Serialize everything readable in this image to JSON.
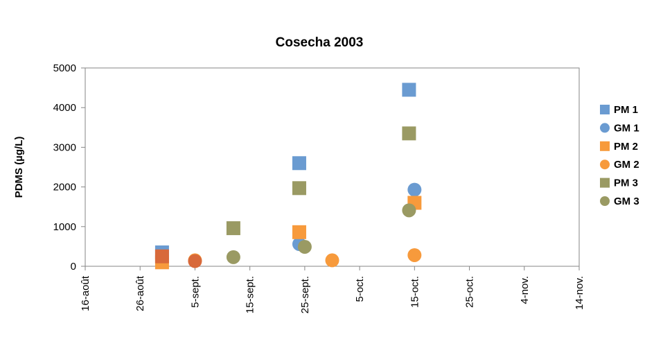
{
  "chart_data": {
    "type": "scatter",
    "title": "Cosecha 2003",
    "xlabel": "",
    "ylabel": "PDMS (µg/L)",
    "x_ticks": [
      "16-août",
      "26-août",
      "5-sept.",
      "15-sept.",
      "25-sept.",
      "5-oct.",
      "15-oct.",
      "25-oct.",
      "4-nov.",
      "14-nov."
    ],
    "x_range": [
      "2003-08-16",
      "2003-11-14"
    ],
    "ylim": [
      0,
      5000
    ],
    "y_ticks": [
      "0",
      "1000",
      "2000",
      "3000",
      "4000",
      "5000"
    ],
    "legend_position": "right",
    "grid": false,
    "series": [
      {
        "name": "PM 1",
        "marker": "square",
        "color": "#6a9bd1",
        "points": [
          {
            "x": "2003-08-30",
            "y": 350
          },
          {
            "x": "2003-09-24",
            "y": 2600
          },
          {
            "x": "2003-10-14",
            "y": 4450
          }
        ]
      },
      {
        "name": "GM 1",
        "marker": "circle",
        "color": "#6a9bd1",
        "points": [
          {
            "x": "2003-09-24",
            "y": 560
          },
          {
            "x": "2003-10-15",
            "y": 1930
          }
        ]
      },
      {
        "name": "PM 2",
        "marker": "square",
        "color": "#f79a3c",
        "points": [
          {
            "x": "2003-08-30",
            "y": 100
          },
          {
            "x": "2003-09-24",
            "y": 860
          },
          {
            "x": "2003-10-15",
            "y": 1600
          }
        ]
      },
      {
        "name": "GM 2",
        "marker": "circle",
        "color": "#f79a3c",
        "points": [
          {
            "x": "2003-09-05",
            "y": 150
          },
          {
            "x": "2003-09-30",
            "y": 150
          },
          {
            "x": "2003-10-15",
            "y": 280
          }
        ]
      },
      {
        "name": "PM 3",
        "marker": "square",
        "color": "#9a9a63",
        "points": [
          {
            "x": "2003-09-12",
            "y": 960
          },
          {
            "x": "2003-09-24",
            "y": 1970
          },
          {
            "x": "2003-10-14",
            "y": 3350
          }
        ]
      },
      {
        "name": "GM 3",
        "marker": "circle",
        "color": "#9a9a63",
        "points": [
          {
            "x": "2003-09-12",
            "y": 230
          },
          {
            "x": "2003-09-25",
            "y": 490
          },
          {
            "x": "2003-10-14",
            "y": 1410
          }
        ]
      }
    ],
    "overlay_points": [
      {
        "marker": "square",
        "color": "#d8693a",
        "x": "2003-08-30",
        "y": 250
      },
      {
        "marker": "circle",
        "color": "#d8693a",
        "x": "2003-09-05",
        "y": 130
      }
    ]
  }
}
